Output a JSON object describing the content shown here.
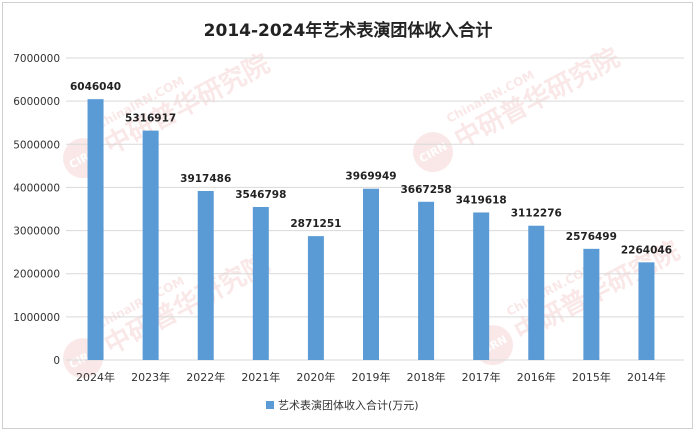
{
  "chart_data": {
    "type": "bar",
    "title": "2014-2024年艺术表演团体收入合计",
    "categories": [
      "2024年",
      "2023年",
      "2022年",
      "2021年",
      "2020年",
      "2019年",
      "2018年",
      "2017年",
      "2016年",
      "2015年",
      "2014年"
    ],
    "series": [
      {
        "name": "艺术表演团体收入合计(万元)",
        "values": [
          6046040,
          5316917,
          3917486,
          3546798,
          2871251,
          3969949,
          3667258,
          3419618,
          3112276,
          2576499,
          2264046
        ]
      }
    ],
    "xlabel": "",
    "ylabel": "",
    "ylim": [
      0,
      7000000
    ],
    "yticks": [
      0,
      1000000,
      2000000,
      3000000,
      4000000,
      5000000,
      6000000,
      7000000
    ],
    "grid": true,
    "legend": "bottom",
    "colors": {
      "bar": "#5B9BD5",
      "grid": "#D9D9D9",
      "border": "#D0D0D0"
    }
  },
  "watermark": {
    "text_en": "ChinaIRN.COM",
    "text_cn": "中研普华研究院",
    "logo_text": "CIRN"
  }
}
